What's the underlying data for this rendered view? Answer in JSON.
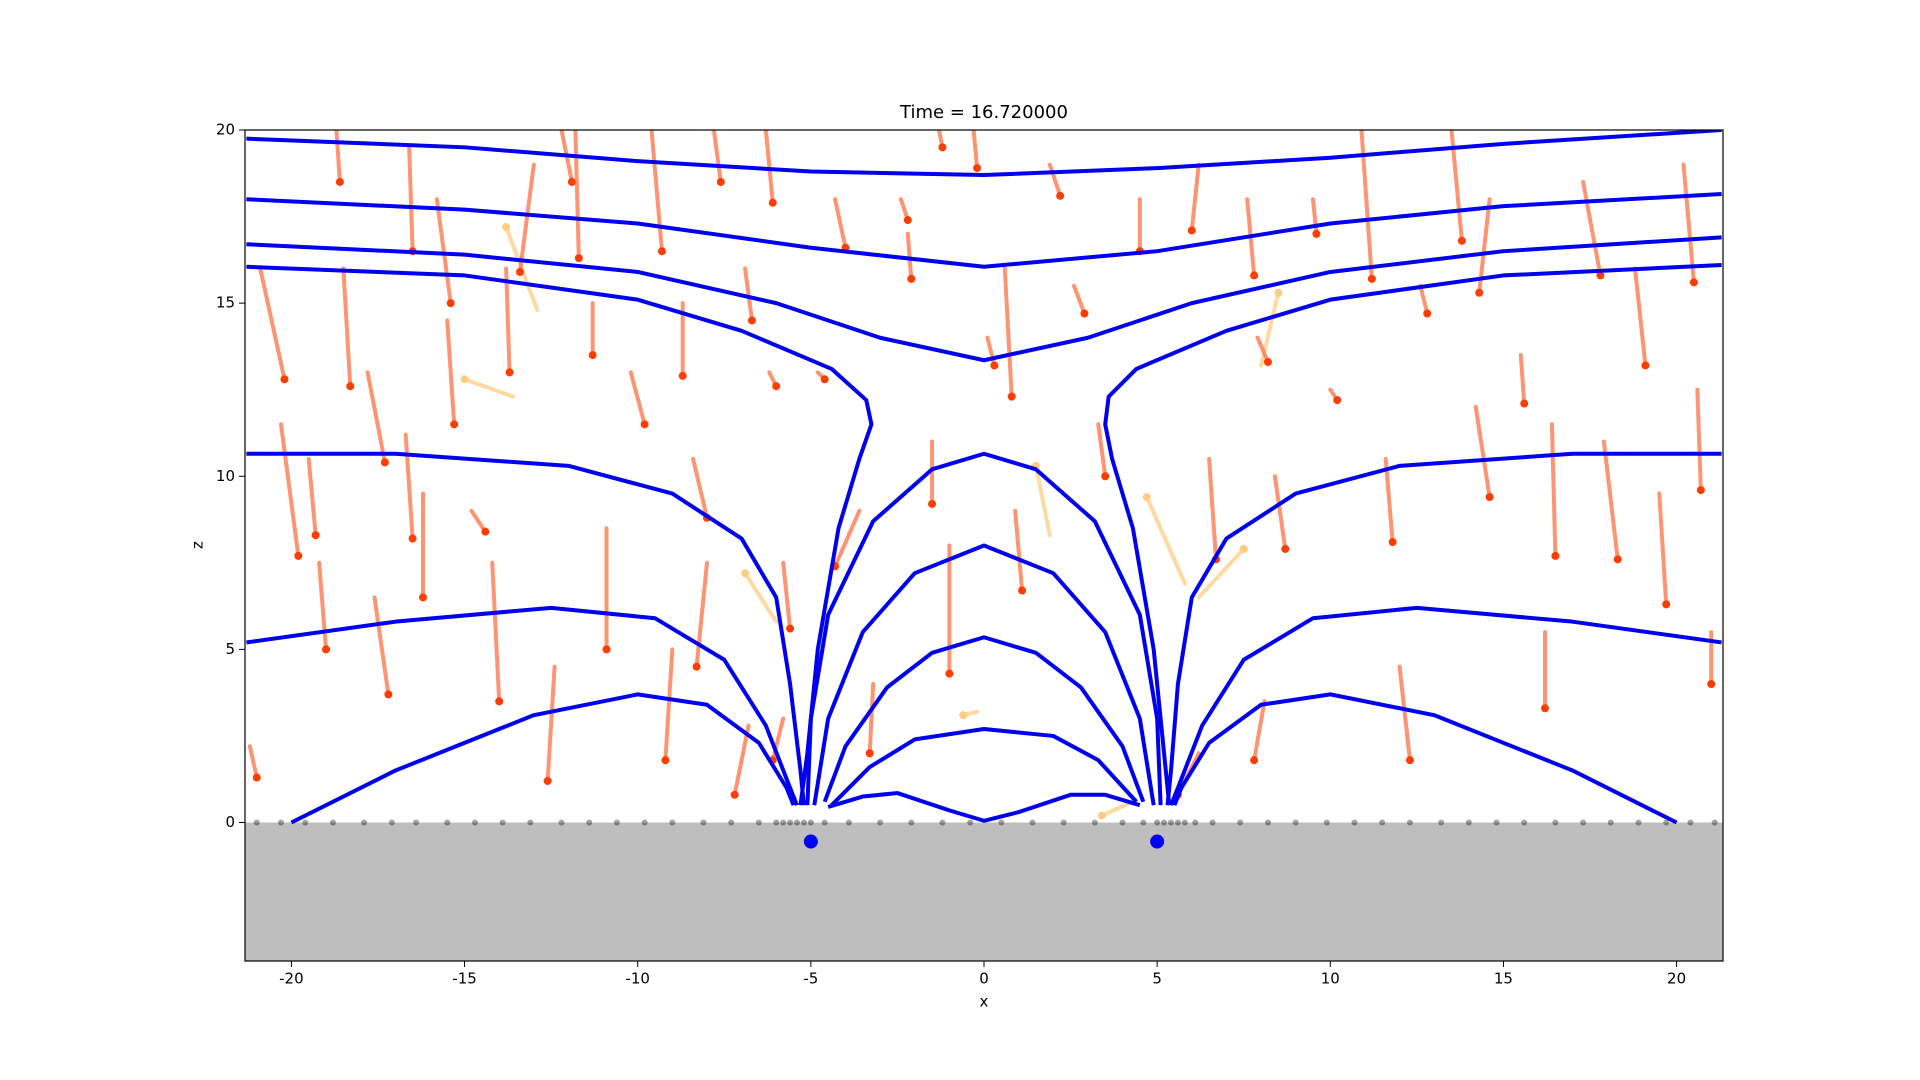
{
  "chart_data": {
    "type": "line",
    "title": "Time = 16.720000",
    "x_label": "x",
    "y_label": "z",
    "xlim": [
      -21.34,
      21.34
    ],
    "ylim": [
      -4,
      20
    ],
    "xticks": [
      -20,
      -15,
      -10,
      -5,
      0,
      5,
      10,
      15,
      20
    ],
    "yticks": [
      0,
      5,
      10,
      15,
      20
    ],
    "ground": {
      "color": "#bebebe",
      "z": [
        -4,
        0
      ]
    },
    "surface": {
      "color": "#000000",
      "z": 0,
      "x": [
        -21,
        -20.3,
        -19.6,
        -18.8,
        -17.9,
        -17.1,
        -16.4,
        -15.5,
        -14.7,
        -13.9,
        -13.1,
        -12.2,
        -11.4,
        -10.6,
        -9.8,
        -9.0,
        -8.1,
        -7.3,
        -6.5,
        -6.0,
        -5.8,
        -5.6,
        -5.4,
        -5.2,
        -5.0,
        -4.6,
        -3.9,
        -3.0,
        -2.1,
        -1.2,
        -0.4,
        0.5,
        1.4,
        2.3,
        3.2,
        4.0,
        4.6,
        5.0,
        5.2,
        5.4,
        5.6,
        5.8,
        6.1,
        6.6,
        7.4,
        8.2,
        9.0,
        9.9,
        10.7,
        11.5,
        12.3,
        13.2,
        14.0,
        14.8,
        15.6,
        16.5,
        17.3,
        18.1,
        18.9,
        19.7,
        20.4,
        21.1
      ]
    },
    "series": [
      {
        "color": "#0000ee",
        "x": [
          -21.3,
          -15,
          -10,
          -5,
          0,
          5,
          10,
          15,
          21.3
        ],
        "y": [
          19.75,
          19.5,
          19.1,
          18.8,
          18.7,
          18.9,
          19.2,
          19.6,
          20.0
        ]
      },
      {
        "color": "#0000ee",
        "x": [
          -21.3,
          -15,
          -10,
          -5,
          0,
          5,
          10,
          15,
          21.3
        ],
        "y": [
          18.0,
          17.7,
          17.3,
          16.6,
          16.05,
          16.5,
          17.3,
          17.8,
          18.15
        ]
      },
      {
        "color": "#0000ee",
        "x": [
          -21.3,
          -15,
          -10,
          -6,
          -3,
          0,
          3,
          6,
          10,
          15,
          21.3
        ],
        "y": [
          16.7,
          16.4,
          15.9,
          15.0,
          14.0,
          13.35,
          14.0,
          15.0,
          15.9,
          16.5,
          16.9
        ]
      },
      {
        "color": "#0000ee",
        "x": [
          -21.3,
          -15,
          -10,
          -7,
          -4.4,
          -3.4,
          -3.25,
          -3.6,
          -4.2,
          -4.8,
          -5.1,
          -5.3
        ],
        "y": [
          16.05,
          15.8,
          15.1,
          14.2,
          13.1,
          12.2,
          11.5,
          10.5,
          8.5,
          5,
          2,
          0.5
        ]
      },
      {
        "color": "#0000ee",
        "x": [
          21.3,
          15,
          10,
          7,
          4.4,
          3.6,
          3.5,
          3.7,
          4.3,
          4.9,
          5.2,
          5.35
        ],
        "y": [
          16.1,
          15.8,
          15.1,
          14.2,
          13.1,
          12.3,
          11.5,
          10.5,
          8.5,
          5,
          2,
          0.5
        ]
      },
      {
        "color": "#0000ee",
        "x": [
          -21.3,
          -17,
          -12,
          -9,
          -7,
          -6,
          -5.6,
          -5.3,
          -5.2
        ],
        "y": [
          10.65,
          10.65,
          10.3,
          9.5,
          8.2,
          6.5,
          4,
          1.5,
          0.5
        ]
      },
      {
        "color": "#0000ee",
        "x": [
          21.3,
          17,
          12,
          9,
          7,
          6,
          5.6,
          5.4,
          5.3
        ],
        "y": [
          10.65,
          10.65,
          10.3,
          9.5,
          8.2,
          6.5,
          4,
          1.5,
          0.5
        ]
      },
      {
        "color": "#0000ee",
        "x": [
          -21.3,
          -17,
          -12.5,
          -9.5,
          -7.5,
          -6.3,
          -5.6,
          -5.4
        ],
        "y": [
          5.2,
          5.8,
          6.2,
          5.9,
          4.7,
          2.8,
          1.0,
          0.5
        ]
      },
      {
        "color": "#0000ee",
        "x": [
          21.3,
          17,
          12.5,
          9.5,
          7.5,
          6.3,
          5.6,
          5.4
        ],
        "y": [
          5.2,
          5.8,
          6.2,
          5.9,
          4.7,
          2.8,
          1.0,
          0.5
        ]
      },
      {
        "color": "#0000ee",
        "x": [
          -20,
          -17,
          -13,
          -10,
          -8,
          -6.5,
          -5.7,
          -5.5
        ],
        "y": [
          0,
          1.5,
          3.1,
          3.7,
          3.4,
          2.3,
          1.0,
          0.5
        ]
      },
      {
        "color": "#0000ee",
        "x": [
          20,
          17,
          13,
          10,
          8,
          6.5,
          5.7,
          5.5
        ],
        "y": [
          0,
          1.5,
          3.1,
          3.7,
          3.4,
          2.3,
          1.0,
          0.5
        ]
      },
      {
        "color": "#0000ee",
        "x": [
          -5.1,
          -5.0,
          -4.5,
          -3.2,
          -1.5,
          0,
          1.5,
          3.2,
          4.5,
          5.0,
          5.1
        ],
        "y": [
          0.5,
          3,
          6,
          8.7,
          10.2,
          10.65,
          10.2,
          8.7,
          6,
          3,
          0.5
        ]
      },
      {
        "color": "#0000ee",
        "x": [
          -4.9,
          -4.5,
          -3.5,
          -2,
          0,
          2,
          3.5,
          4.5,
          4.9
        ],
        "y": [
          0.5,
          3,
          5.5,
          7.2,
          8.0,
          7.2,
          5.5,
          3,
          0.5
        ]
      },
      {
        "color": "#0000ee",
        "x": [
          -4.6,
          -4,
          -2.8,
          -1.5,
          0,
          1.5,
          2.8,
          4,
          4.6
        ],
        "y": [
          0.6,
          2.2,
          3.9,
          4.9,
          5.35,
          4.9,
          3.9,
          2.2,
          0.6
        ]
      },
      {
        "color": "#0000ee",
        "x": [
          -4.4,
          -3.3,
          -2,
          0,
          2,
          3.3,
          4.4
        ],
        "y": [
          0.5,
          1.6,
          2.4,
          2.7,
          2.5,
          1.8,
          0.6
        ]
      },
      {
        "color": "#0000ee",
        "x": [
          -4.5,
          -3.5,
          -2.5,
          -1,
          0,
          1,
          2.5,
          3.5,
          4.5
        ],
        "y": [
          0.45,
          0.75,
          0.85,
          0.35,
          0.05,
          0.3,
          0.8,
          0.8,
          0.5
        ]
      }
    ],
    "trails": {
      "color": "#ff7043",
      "head_color": "#ff3d00",
      "segments": [
        [
          -20.9,
          16,
          -20.2,
          12.8
        ],
        [
          -20.3,
          11.5,
          -19.8,
          7.7
        ],
        [
          -21.2,
          2.2,
          -21.0,
          1.3
        ],
        [
          -19.5,
          10.5,
          -19.3,
          8.3
        ],
        [
          -19.2,
          7.5,
          -19.0,
          5.0
        ],
        [
          -18.7,
          20,
          -18.6,
          18.5
        ],
        [
          -18.5,
          16,
          -18.3,
          12.6
        ],
        [
          -17.8,
          13,
          -17.3,
          10.4
        ],
        [
          -17.6,
          6.5,
          -17.2,
          3.7
        ],
        [
          -16.6,
          19.5,
          -16.5,
          16.5
        ],
        [
          -16.7,
          11.2,
          -16.5,
          8.2
        ],
        [
          -16.2,
          9.5,
          -16.2,
          6.5
        ],
        [
          -15.8,
          18,
          -15.4,
          15.0
        ],
        [
          -15.5,
          14.5,
          -15.3,
          11.5
        ],
        [
          -14.8,
          9,
          -14.4,
          8.4
        ],
        [
          -14.2,
          7.5,
          -14.0,
          3.5
        ],
        [
          -13.8,
          16,
          -13.7,
          13.0
        ],
        [
          -13,
          19,
          -13.4,
          15.9
        ],
        [
          -12.2,
          20,
          -11.9,
          18.5
        ],
        [
          -11.8,
          20,
          -11.7,
          16.3
        ],
        [
          -11.3,
          15,
          -11.3,
          13.5
        ],
        [
          -10.9,
          8.5,
          -10.9,
          5.0
        ],
        [
          -10.2,
          13,
          -9.8,
          11.5
        ],
        [
          -9.6,
          20,
          -9.3,
          16.5
        ],
        [
          -8.7,
          15,
          -8.7,
          12.9
        ],
        [
          -8.4,
          10.5,
          -8.0,
          8.8
        ],
        [
          -8.0,
          7.5,
          -8.3,
          4.5
        ],
        [
          -7.8,
          20,
          -7.6,
          18.5
        ],
        [
          -6.9,
          16,
          -6.7,
          14.5
        ],
        [
          -6.3,
          20,
          -6.1,
          17.9
        ],
        [
          -6.2,
          13,
          -6.0,
          12.6
        ],
        [
          -5.8,
          7.5,
          -5.6,
          5.6
        ],
        [
          -5.8,
          3,
          -6.1,
          1.8
        ],
        [
          -4.8,
          13,
          -4.6,
          12.8
        ],
        [
          -4.3,
          18,
          -4.0,
          16.6
        ],
        [
          -3.6,
          9,
          -4.3,
          7.4
        ],
        [
          -3.2,
          4,
          -3.3,
          2.0
        ],
        [
          -2.4,
          18,
          -2.2,
          17.4
        ],
        [
          -2.2,
          17,
          -2.1,
          15.7
        ],
        [
          -1.5,
          11,
          -1.5,
          9.2
        ],
        [
          -1.3,
          20,
          -1.2,
          19.5
        ],
        [
          -1.0,
          8,
          -1.0,
          4.3
        ],
        [
          -0.3,
          20,
          -0.2,
          18.9
        ],
        [
          0.1,
          14,
          0.3,
          13.2
        ],
        [
          0.6,
          16,
          0.8,
          12.3
        ],
        [
          0.9,
          9,
          1.1,
          6.7
        ],
        [
          1.9,
          19,
          2.2,
          18.1
        ],
        [
          2.6,
          15.5,
          2.9,
          14.7
        ],
        [
          3.3,
          11.5,
          3.5,
          10.0
        ],
        [
          4.5,
          18,
          4.5,
          16.5
        ],
        [
          6.2,
          19,
          6.0,
          17.1
        ],
        [
          6.5,
          10.5,
          6.7,
          7.6
        ],
        [
          7.6,
          18,
          7.8,
          15.8
        ],
        [
          7.9,
          14,
          8.2,
          13.3
        ],
        [
          8.4,
          10,
          8.7,
          7.9
        ],
        [
          9.5,
          18,
          9.6,
          17.0
        ],
        [
          10.0,
          12.5,
          10.2,
          12.2
        ],
        [
          10.9,
          20,
          11.2,
          15.7
        ],
        [
          11.6,
          10.5,
          11.8,
          8.1
        ],
        [
          12.6,
          15.5,
          12.8,
          14.7
        ],
        [
          13.5,
          20,
          13.8,
          16.8
        ],
        [
          14.2,
          12,
          14.6,
          9.4
        ],
        [
          14.6,
          18,
          14.3,
          15.3
        ],
        [
          15.5,
          13.5,
          15.6,
          12.1
        ],
        [
          16.4,
          11.5,
          16.5,
          7.7
        ],
        [
          17.3,
          18.5,
          17.8,
          15.8
        ],
        [
          17.9,
          11,
          18.3,
          7.6
        ],
        [
          18.8,
          16,
          19.1,
          13.2
        ],
        [
          19.5,
          9.5,
          19.7,
          6.3
        ],
        [
          20.2,
          19,
          20.5,
          15.6
        ],
        [
          20.6,
          12.5,
          20.7,
          9.6
        ],
        [
          21.0,
          5.5,
          21.0,
          4.0
        ],
        [
          -9.0,
          5,
          -9.2,
          1.8
        ],
        [
          -12.4,
          4.5,
          -12.6,
          1.2
        ],
        [
          12.0,
          4.5,
          12.3,
          1.8
        ],
        [
          16.2,
          5.5,
          16.2,
          3.3
        ],
        [
          8.1,
          3.5,
          7.8,
          1.8
        ],
        [
          -6.8,
          2.8,
          -7.2,
          0.8
        ],
        [
          6.2,
          2,
          5.6,
          0.8
        ]
      ]
    },
    "faint_trails": {
      "color": "#ffcc80",
      "head_color": "#ffcc80",
      "segments": [
        [
          -12.9,
          14.8,
          -13.8,
          17.2
        ],
        [
          -13.6,
          12.3,
          -15.0,
          12.8
        ],
        [
          8.0,
          13.2,
          8.5,
          15.3
        ],
        [
          1.9,
          8.3,
          1.5,
          10.3
        ],
        [
          5.8,
          6.9,
          4.7,
          9.4
        ],
        [
          6.2,
          6.5,
          7.5,
          7.9
        ],
        [
          -6.0,
          5.8,
          -6.9,
          7.2
        ],
        [
          -0.2,
          3.2,
          -0.6,
          3.1
        ],
        [
          4.3,
          0.6,
          3.4,
          0.2
        ]
      ]
    },
    "charges": {
      "color": "#0000ff",
      "x": [
        -5,
        5
      ],
      "y": [
        -0.55,
        -0.55
      ]
    }
  }
}
